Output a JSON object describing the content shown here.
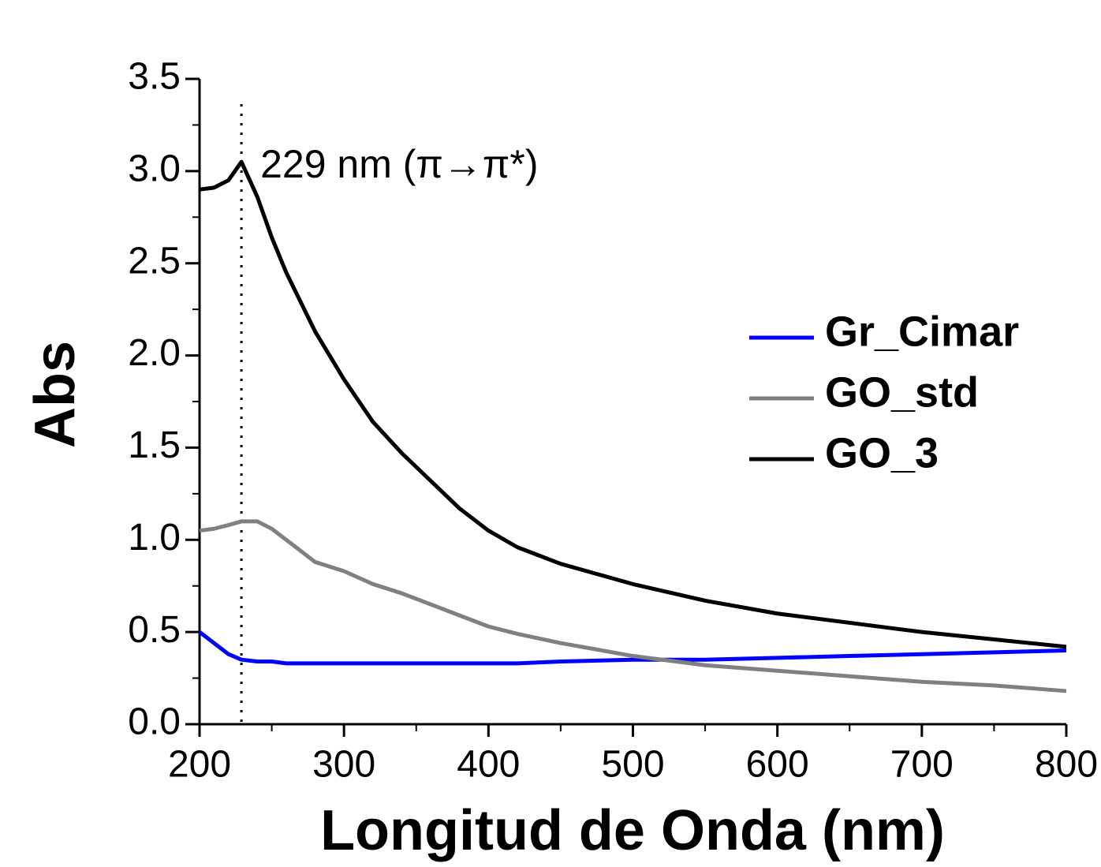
{
  "chart_data": {
    "type": "line",
    "xlabel": "Longitud de Onda (nm)",
    "ylabel": "Abs",
    "annotation": {
      "x": 229,
      "text": "229 nm (π→π*)"
    },
    "x": [
      200,
      210,
      220,
      229,
      240,
      250,
      260,
      280,
      300,
      320,
      340,
      360,
      380,
      400,
      420,
      450,
      500,
      550,
      600,
      650,
      700,
      750,
      800
    ],
    "series": [
      {
        "name": "Gr_Cimar",
        "color": "#0000ff",
        "values": [
          0.5,
          0.44,
          0.38,
          0.35,
          0.34,
          0.34,
          0.33,
          0.33,
          0.33,
          0.33,
          0.33,
          0.33,
          0.33,
          0.33,
          0.33,
          0.34,
          0.35,
          0.35,
          0.36,
          0.37,
          0.38,
          0.39,
          0.4
        ]
      },
      {
        "name": "GO_std",
        "color": "#808080",
        "values": [
          1.05,
          1.06,
          1.08,
          1.1,
          1.1,
          1.06,
          1.0,
          0.88,
          0.83,
          0.76,
          0.71,
          0.65,
          0.59,
          0.53,
          0.49,
          0.44,
          0.37,
          0.32,
          0.29,
          0.26,
          0.23,
          0.21,
          0.18
        ]
      },
      {
        "name": "GO_3",
        "color": "#000000",
        "values": [
          2.9,
          2.91,
          2.95,
          3.05,
          2.86,
          2.64,
          2.45,
          2.13,
          1.87,
          1.64,
          1.47,
          1.32,
          1.17,
          1.05,
          0.96,
          0.87,
          0.76,
          0.67,
          0.6,
          0.55,
          0.5,
          0.46,
          0.42
        ]
      }
    ],
    "xlim": [
      200,
      800
    ],
    "xticks": [
      200,
      300,
      400,
      500,
      600,
      700,
      800
    ],
    "ylim": [
      0,
      3.5
    ],
    "yticks": [
      {
        "value": 0,
        "label": "0.0"
      },
      0.5,
      {
        "value": 1,
        "label": "1.0"
      },
      1.5,
      {
        "value": 2,
        "label": "2.0"
      },
      2.5,
      {
        "value": 3,
        "label": "3.0"
      },
      3.5
    ],
    "grid": false,
    "legend": "right"
  }
}
